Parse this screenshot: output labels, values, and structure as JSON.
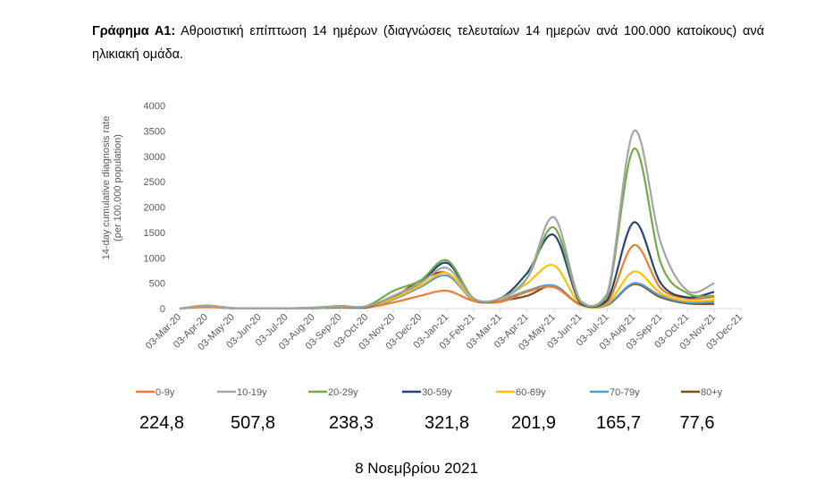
{
  "caption": {
    "label": "Γράφημα Α1:",
    "text": " Αθροιστική επίπτωση 14 ημέρων (διαγνώσεις τελευταίων 14 ημερών ανά 100.000 κατοίκους) ανά ηλικιακή ομάδα."
  },
  "chart_data": {
    "type": "line",
    "ylabel": "14-day cumulative diagnosis rate (per 100,000 population)",
    "ylim": [
      0,
      4000
    ],
    "yticks": [
      0,
      500,
      1000,
      1500,
      2000,
      2500,
      3000,
      3500,
      4000
    ],
    "grid": false,
    "legend_position": "bottom",
    "x": [
      "03-Mar-20",
      "03-Apr-20",
      "03-May-20",
      "03-Jun-20",
      "03-Jul-20",
      "03-Aug-20",
      "03-Sep-20",
      "03-Oct-20",
      "03-Nov-20",
      "03-Dec-20",
      "03-Jan-21",
      "03-Feb-21",
      "03-Mar-21",
      "03-Apr-21",
      "03-May-21",
      "03-Jun-21",
      "03-Jul-21",
      "03-Aug-21",
      "03-Sep-21",
      "03-Oct-21",
      "03-Nov-21",
      "03-Dec-21"
    ],
    "series": [
      {
        "name": "0-9y",
        "color": "#ed7d31",
        "values": [
          0,
          30,
          5,
          3,
          3,
          8,
          20,
          20,
          120,
          250,
          350,
          150,
          130,
          330,
          420,
          80,
          120,
          1250,
          400,
          200,
          230,
          null
        ]
      },
      {
        "name": "10-19y",
        "color": "#a5a5a5",
        "values": [
          0,
          50,
          8,
          5,
          5,
          15,
          35,
          40,
          250,
          500,
          800,
          200,
          200,
          600,
          1800,
          150,
          300,
          3500,
          1300,
          350,
          500,
          null
        ]
      },
      {
        "name": "20-29y",
        "color": "#70ad47",
        "values": [
          0,
          60,
          10,
          5,
          5,
          20,
          50,
          50,
          350,
          550,
          950,
          200,
          200,
          600,
          1600,
          130,
          250,
          3150,
          900,
          300,
          250,
          null
        ]
      },
      {
        "name": "30-59y",
        "color": "#264478",
        "values": [
          0,
          50,
          10,
          5,
          5,
          12,
          30,
          30,
          250,
          500,
          900,
          200,
          200,
          700,
          1450,
          100,
          170,
          1700,
          500,
          220,
          330,
          null
        ]
      },
      {
        "name": "60-69y",
        "color": "#ffc000",
        "values": [
          0,
          45,
          8,
          4,
          4,
          10,
          25,
          25,
          200,
          450,
          700,
          180,
          180,
          500,
          850,
          80,
          100,
          730,
          300,
          150,
          170,
          null
        ]
      },
      {
        "name": "70-79y",
        "color": "#5b9bd5",
        "values": [
          0,
          40,
          6,
          3,
          3,
          8,
          20,
          20,
          180,
          420,
          650,
          170,
          170,
          350,
          450,
          70,
          80,
          500,
          250,
          120,
          130,
          null
        ]
      },
      {
        "name": "80+y",
        "color": "#7f4f1c",
        "values": [
          0,
          35,
          6,
          3,
          3,
          8,
          20,
          20,
          220,
          550,
          700,
          160,
          160,
          250,
          450,
          70,
          70,
          480,
          220,
          100,
          90,
          null
        ]
      }
    ]
  },
  "legend_values": [
    "224,8",
    "507,8",
    "238,3",
    "321,8",
    "201,9",
    "165,7",
    "77,6"
  ],
  "date_text": "8 Νοεμβρίου 2021"
}
